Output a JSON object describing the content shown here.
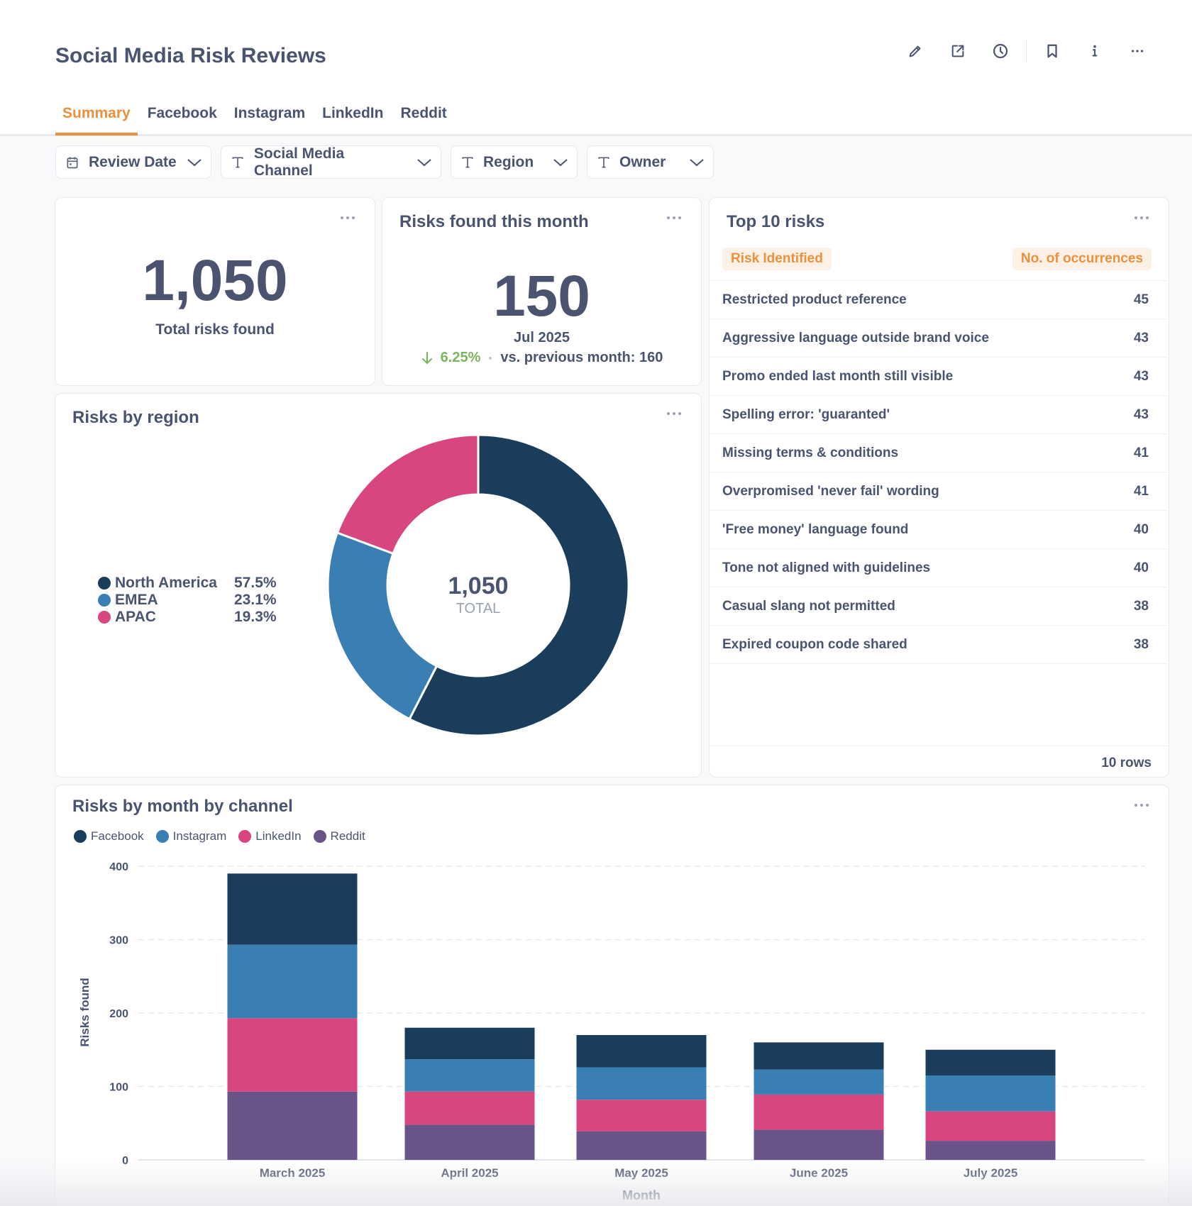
{
  "header": {
    "title": "Social Media Risk Reviews",
    "toolbar": [
      {
        "name": "edit-button",
        "icon": "pencil-icon"
      },
      {
        "name": "share-button",
        "icon": "external-link-icon"
      },
      {
        "name": "history-button",
        "icon": "clock-icon"
      },
      {
        "name": "bookmark-button",
        "icon": "bookmark-icon"
      },
      {
        "name": "info-button",
        "icon": "info-icon"
      },
      {
        "name": "more-button",
        "icon": "more-horizontal-icon"
      }
    ]
  },
  "tabs": [
    {
      "label": "Summary",
      "active": true
    },
    {
      "label": "Facebook",
      "active": false
    },
    {
      "label": "Instagram",
      "active": false
    },
    {
      "label": "LinkedIn",
      "active": false
    },
    {
      "label": "Reddit",
      "active": false
    }
  ],
  "filters": [
    {
      "label": "Review Date",
      "icon": "calendar-icon"
    },
    {
      "label": "Social Media Channel",
      "icon": "text-type-icon"
    },
    {
      "label": "Region",
      "icon": "text-type-icon"
    },
    {
      "label": "Owner",
      "icon": "text-type-icon"
    }
  ],
  "total_card": {
    "value": "1,050",
    "label": "Total risks found"
  },
  "month_card": {
    "title": "Risks found this month",
    "value": "150",
    "period": "Jul 2025",
    "change": "6.25%",
    "change_direction": "down",
    "comparison": "vs. previous month: 160",
    "change_color": "#7ab55c"
  },
  "top_risks": {
    "title": "Top 10 risks",
    "columns": [
      "Risk Identified",
      "No. of occurrences"
    ],
    "rows": [
      {
        "risk": "Restricted product reference",
        "count": "45"
      },
      {
        "risk": "Aggressive language outside brand voice",
        "count": "43"
      },
      {
        "risk": "Promo ended last month still visible",
        "count": "43"
      },
      {
        "risk": "Spelling error: 'guaranted'",
        "count": "43"
      },
      {
        "risk": "Missing terms & conditions",
        "count": "41"
      },
      {
        "risk": "Overpromised 'never fail' wording",
        "count": "41"
      },
      {
        "risk": "'Free money' language found",
        "count": "40"
      },
      {
        "risk": "Tone not aligned with guidelines",
        "count": "40"
      },
      {
        "risk": "Casual slang not permitted",
        "count": "38"
      },
      {
        "risk": "Expired coupon code shared",
        "count": "38"
      }
    ],
    "footer": "10 rows"
  },
  "colors": {
    "accent": "#e8913e",
    "north_america": "#1a3d5c",
    "emea": "#3a7fb4",
    "apac": "#d9467f",
    "facebook": "#1a3d5c",
    "instagram": "#3a7fb4",
    "linkedin": "#d9467f",
    "reddit": "#6a5389"
  },
  "chart_data": [
    {
      "type": "pie",
      "title": "Risks by region",
      "center_value": "1,050",
      "center_label": "TOTAL",
      "legend_position": "left",
      "slices": [
        {
          "label": "North America",
          "percent": 57.5,
          "display": "57.5%",
          "color": "#1a3d5c"
        },
        {
          "label": "EMEA",
          "percent": 23.1,
          "display": "23.1%",
          "color": "#3a7fb4"
        },
        {
          "label": "APAC",
          "percent": 19.3,
          "display": "19.3%",
          "color": "#d9467f"
        }
      ]
    },
    {
      "type": "bar",
      "stacked": true,
      "title": "Risks by month by channel",
      "xlabel": "Month",
      "ylabel": "Risks found",
      "ylim": [
        0,
        400
      ],
      "yticks": [
        "0",
        "100",
        "200",
        "300",
        "400"
      ],
      "grid": true,
      "legend_position": "top-left",
      "categories": [
        "March 2025",
        "April 2025",
        "May 2025",
        "June 2025",
        "July 2025"
      ],
      "series": [
        {
          "name": "Reddit",
          "color": "#6a5389",
          "values": [
            93,
            48,
            39,
            41,
            26
          ]
        },
        {
          "name": "LinkedIn",
          "color": "#d9467f",
          "values": [
            100,
            45,
            43,
            48,
            40
          ]
        },
        {
          "name": "Instagram",
          "color": "#3a7fb4",
          "values": [
            100,
            44,
            44,
            34,
            49
          ]
        },
        {
          "name": "Facebook",
          "color": "#1a3d5c",
          "values": [
            97,
            43,
            44,
            37,
            35
          ]
        }
      ],
      "legend_order": [
        "Facebook",
        "Instagram",
        "LinkedIn",
        "Reddit"
      ]
    }
  ]
}
